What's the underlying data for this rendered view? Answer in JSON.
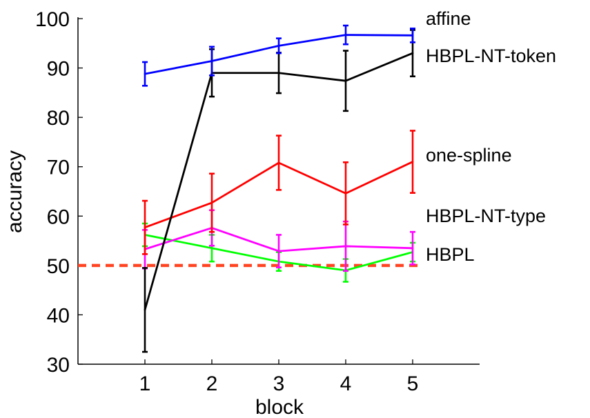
{
  "chart_data": {
    "type": "line",
    "title": "",
    "xlabel": "block",
    "ylabel": "accuracy",
    "xlim": [
      0,
      6
    ],
    "ylim": [
      30,
      100
    ],
    "x_ticks": [
      "1",
      "2",
      "3",
      "4",
      "5"
    ],
    "y_ticks": [
      "30",
      "40",
      "50",
      "60",
      "70",
      "80",
      "90",
      "100"
    ],
    "grid": false,
    "legend": "direct labels at right",
    "x": [
      1,
      2,
      3,
      4,
      5
    ],
    "series": [
      {
        "name": "affine",
        "color": "#0000ff",
        "values": [
          88.8,
          91.4,
          94.5,
          96.7,
          96.6
        ],
        "errors": [
          2.4,
          2.9,
          1.5,
          1.9,
          1.4
        ]
      },
      {
        "name": "HBPL-NT-token",
        "color": "#000000",
        "values": [
          41.0,
          89.0,
          89.0,
          87.4,
          93.0
        ],
        "errors": [
          8.5,
          4.8,
          4.1,
          6.1,
          4.7
        ]
      },
      {
        "name": "one-spline",
        "color": "#ff0000",
        "values": [
          57.7,
          62.7,
          70.8,
          64.6,
          71.0
        ],
        "errors": [
          5.4,
          5.9,
          5.5,
          6.3,
          6.3
        ]
      },
      {
        "name": "HBPL-NT-type",
        "color": "#ff00ff",
        "values": [
          53.3,
          57.6,
          52.9,
          53.9,
          53.5
        ],
        "errors": [
          3.9,
          3.6,
          3.3,
          5.0,
          3.3
        ]
      },
      {
        "name": "HBPL",
        "color": "#00ff00",
        "values": [
          56.2,
          53.5,
          50.8,
          49.0,
          52.7
        ],
        "errors": [
          2.3,
          2.7,
          1.9,
          2.3,
          1.9
        ]
      }
    ],
    "baseline": {
      "value": 50,
      "color": "#ff4422",
      "style": "dashed"
    }
  }
}
